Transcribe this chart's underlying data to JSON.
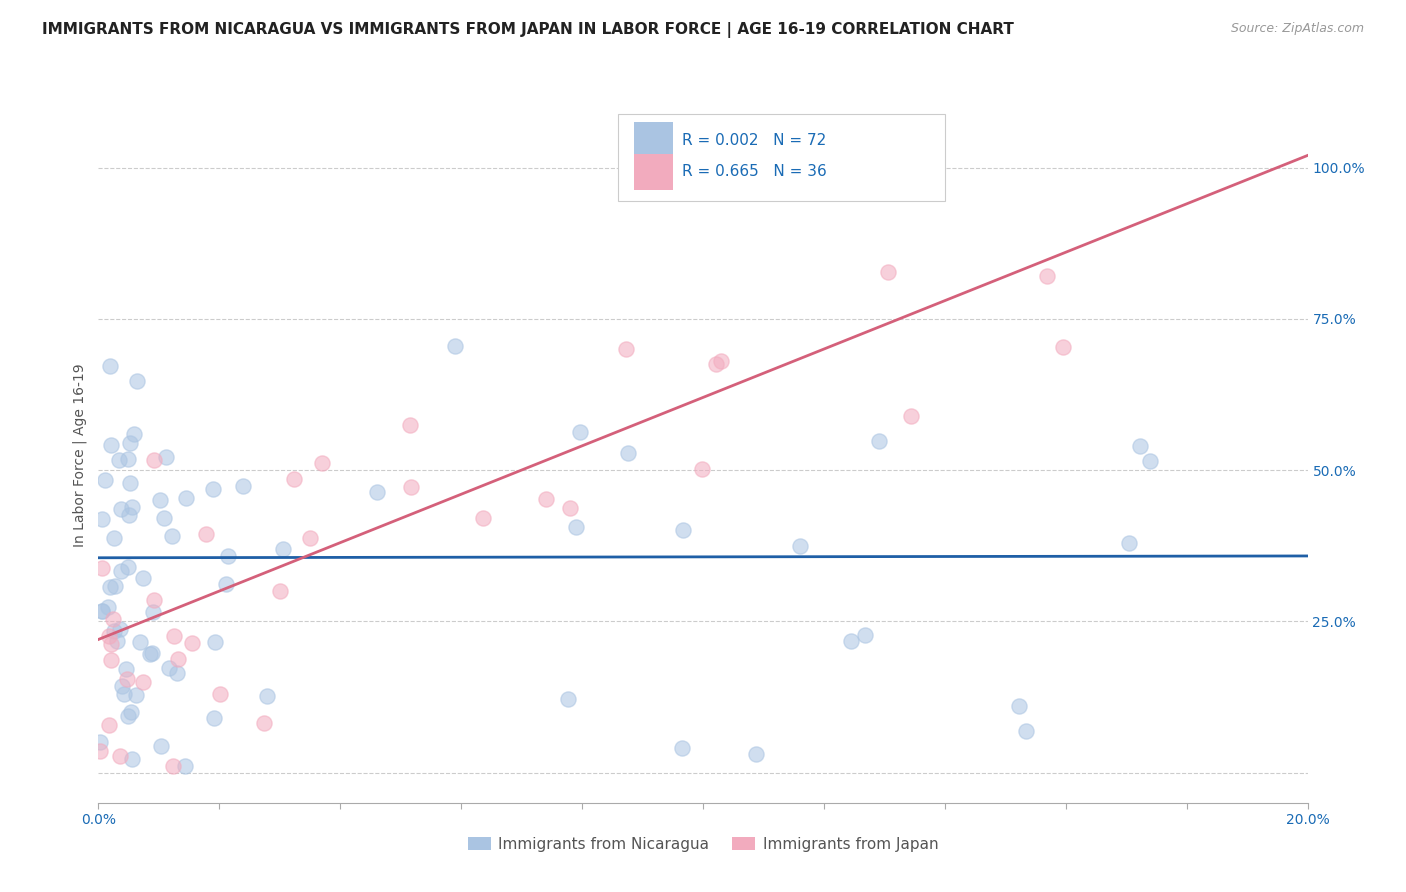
{
  "title": "IMMIGRANTS FROM NICARAGUA VS IMMIGRANTS FROM JAPAN IN LABOR FORCE | AGE 16-19 CORRELATION CHART",
  "source": "Source: ZipAtlas.com",
  "ylabel": "In Labor Force | Age 16-19",
  "xlim": [
    0.0,
    0.2
  ],
  "ylim": [
    -0.05,
    1.1
  ],
  "yticks_right": [
    0.0,
    0.25,
    0.5,
    0.75,
    1.0
  ],
  "ytick_right_labels": [
    "",
    "25.0%",
    "50.0%",
    "75.0%",
    "100.0%"
  ],
  "xticks": [
    0.0,
    0.02,
    0.04,
    0.06,
    0.08,
    0.1,
    0.12,
    0.14,
    0.16,
    0.18,
    0.2
  ],
  "nicaragua_dot_color": "#aac4e2",
  "japan_dot_color": "#f2abbe",
  "nicaragua_line_color": "#1f5fa6",
  "japan_line_color": "#d4607a",
  "background_color": "#ffffff",
  "grid_color": "#cccccc",
  "dot_size": 120,
  "dot_alpha": 0.55,
  "title_fontsize": 11,
  "axis_label_fontsize": 10,
  "tick_fontsize": 10,
  "nicaragua_R": 0.002,
  "nicaragua_N": 72,
  "japan_R": 0.665,
  "japan_N": 36,
  "nic_line_y0": 0.355,
  "nic_line_y1": 0.358,
  "jap_line_y0": 0.22,
  "jap_line_y1": 1.02
}
